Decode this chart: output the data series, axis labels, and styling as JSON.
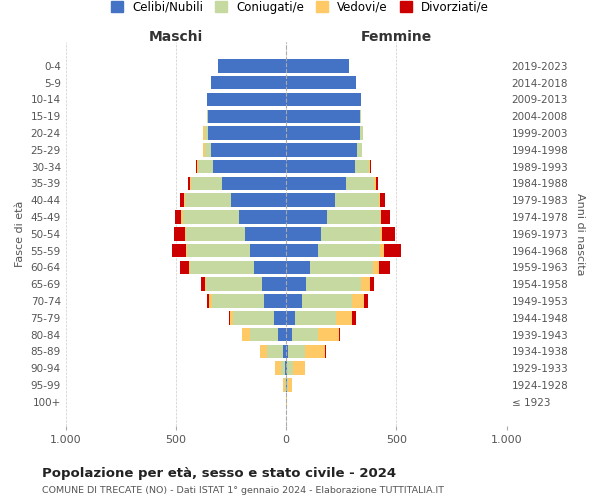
{
  "age_groups": [
    "100+",
    "95-99",
    "90-94",
    "85-89",
    "80-84",
    "75-79",
    "70-74",
    "65-69",
    "60-64",
    "55-59",
    "50-54",
    "45-49",
    "40-44",
    "35-39",
    "30-34",
    "25-29",
    "20-24",
    "15-19",
    "10-14",
    "5-9",
    "0-4"
  ],
  "birth_years": [
    "≤ 1923",
    "1924-1928",
    "1929-1933",
    "1934-1938",
    "1939-1943",
    "1944-1948",
    "1949-1953",
    "1954-1958",
    "1959-1963",
    "1964-1968",
    "1969-1973",
    "1974-1978",
    "1979-1983",
    "1984-1988",
    "1989-1993",
    "1994-1998",
    "1999-2003",
    "2004-2008",
    "2009-2013",
    "2014-2018",
    "2019-2023"
  ],
  "colors": {
    "celibe": "#4472c4",
    "coniugato": "#c6d9a0",
    "vedovo": "#ffc966",
    "divorziato": "#cc0000"
  },
  "maschi": {
    "celibe": [
      0,
      2,
      5,
      15,
      35,
      55,
      100,
      110,
      145,
      165,
      185,
      215,
      250,
      290,
      330,
      340,
      355,
      355,
      360,
      340,
      310
    ],
    "coniugato": [
      0,
      5,
      20,
      70,
      130,
      185,
      235,
      255,
      290,
      285,
      270,
      255,
      210,
      140,
      70,
      30,
      15,
      5,
      0,
      0,
      0
    ],
    "vedovo": [
      0,
      8,
      25,
      35,
      35,
      15,
      15,
      5,
      5,
      5,
      5,
      5,
      5,
      5,
      5,
      5,
      8,
      0,
      0,
      0,
      0
    ],
    "divorziato": [
      0,
      0,
      0,
      0,
      0,
      5,
      10,
      15,
      40,
      65,
      50,
      30,
      15,
      10,
      5,
      0,
      0,
      0,
      0,
      0,
      0
    ]
  },
  "femmine": {
    "nubile": [
      0,
      2,
      5,
      10,
      25,
      40,
      70,
      90,
      110,
      145,
      160,
      185,
      220,
      270,
      310,
      320,
      335,
      335,
      340,
      315,
      285
    ],
    "coniugata": [
      0,
      5,
      25,
      75,
      120,
      185,
      230,
      250,
      285,
      280,
      265,
      240,
      200,
      130,
      65,
      25,
      15,
      5,
      0,
      0,
      0
    ],
    "vedova": [
      5,
      20,
      55,
      90,
      95,
      75,
      55,
      40,
      25,
      20,
      10,
      5,
      5,
      5,
      5,
      0,
      0,
      0,
      0,
      0,
      0
    ],
    "divorziata": [
      0,
      0,
      0,
      5,
      5,
      15,
      15,
      20,
      50,
      75,
      60,
      40,
      25,
      10,
      5,
      0,
      0,
      0,
      0,
      0,
      0
    ]
  },
  "xlim": 1000,
  "xticks": [
    -1000,
    -500,
    0,
    500,
    1000
  ],
  "xticklabels": [
    "1.000",
    "500",
    "0",
    "500",
    "1.000"
  ],
  "title": "Popolazione per età, sesso e stato civile - 2024",
  "subtitle": "COMUNE DI TRECATE (NO) - Dati ISTAT 1° gennaio 2024 - Elaborazione TUTTITALIA.IT",
  "ylabel_left": "Fasce di età",
  "ylabel_right": "Anni di nascita",
  "col_maschi": "Maschi",
  "col_femmine": "Femmine",
  "legend_labels": [
    "Celibi/Nubili",
    "Coniugati/e",
    "Vedovi/e",
    "Divorziati/e"
  ],
  "bg_color": "#ffffff",
  "grid_color": "#cccccc"
}
